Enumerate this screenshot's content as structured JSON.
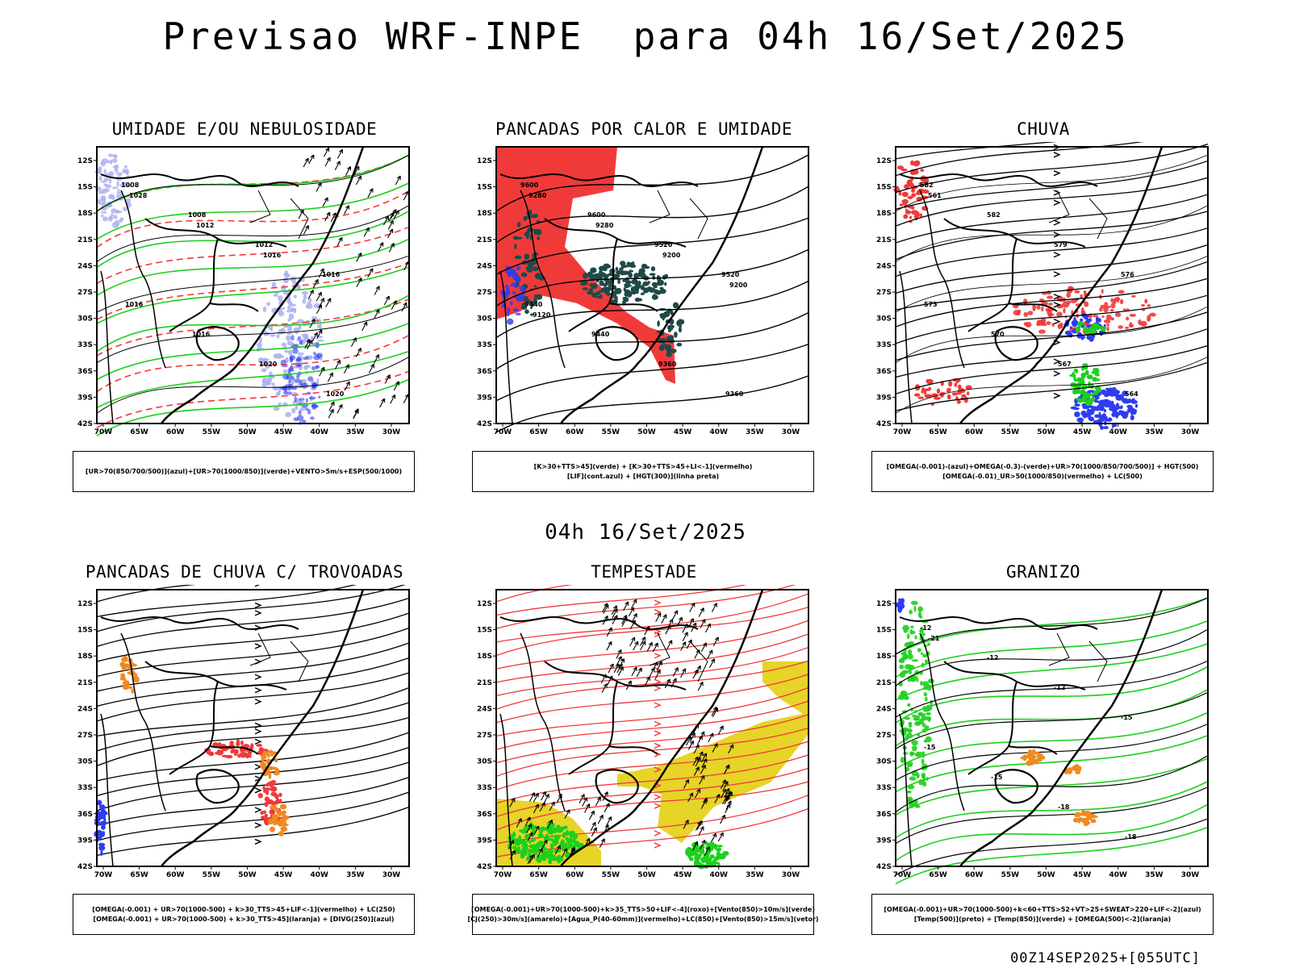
{
  "header": {
    "title": "Previsao WRF-INPE  para 04h 16/Set/2025"
  },
  "middle_label": "04h 16/Set/2025",
  "footer": "00Z14SEP2025+[055UTC]",
  "axes": {
    "lon_labels": [
      "70W",
      "65W",
      "60W",
      "55W",
      "50W",
      "45W",
      "40W",
      "35W",
      "30W"
    ],
    "lat_labels": [
      "12S",
      "15S",
      "18S",
      "21S",
      "24S",
      "27S",
      "30S",
      "33S",
      "36S",
      "39S",
      "42S"
    ]
  },
  "panels": [
    {
      "id": "umidade",
      "title": "UMIDADE E/OU NEBULOSIDADE",
      "legend": [
        "[UR>70(850/700/500)](azul)+[UR>70(1000/850)](verde)+VENTO>5m/s+ESP(500/1000)"
      ],
      "contour_labels": [
        "1008",
        "1008",
        "1012",
        "1016",
        "1016",
        "1016",
        "1020",
        "1020",
        "1028",
        "1012",
        "1016"
      ]
    },
    {
      "id": "pancadas_calor",
      "title": "PANCADAS POR CALOR E UMIDADE",
      "legend": [
        "[K>30+TTS>45](verde) + [K>30+TTS>45+LI<-1](vermelho)",
        "[LIF](cont.azul) + [HGT(300)](linha preta)"
      ],
      "contour_labels": [
        "9600",
        "9600",
        "9520",
        "9520",
        "9440",
        "9440",
        "9360",
        "9360",
        "9280",
        "9280",
        "9200",
        "9200",
        "9120"
      ]
    },
    {
      "id": "chuva",
      "title": "CHUVA",
      "legend": [
        "[OMEGA(-0.001)-(azul)+OMEGA(-0.3)-(verde)+UR>70(1000/850/700/500)] + HGT(500)",
        "[OMEGA(-0.01)_UR>50(1000/850)(vermelho) + LC(500)"
      ],
      "contour_labels": [
        "582",
        "582",
        "579",
        "576",
        "573",
        "570",
        "567",
        "564",
        "561"
      ]
    },
    {
      "id": "trovoadas",
      "title": "PANCADAS DE CHUVA C/ TROVOADAS",
      "legend": [
        "[OMEGA(-0.001) + UR>70(1000-500) + k>30_TTS>45+LIF<-1](vermelho) + LC(250)",
        "[OMEGA(-0.001) + UR>70(1000-500) + k>30_TTS>45](laranja) + [DIVG(250)](azul)"
      ],
      "contour_labels": []
    },
    {
      "id": "tempestade",
      "title": "TEMPESTADE",
      "legend": [
        "[OMEGA(-0.001)+UR>70(1000-500)+k>35_TTS>50+LIF<-4](roxo)+[Vento(850)>10m/s](verde)",
        "[CJ(250)>30m/s](amarelo)+[Agua_P(40-60mm)](vermelho)+LC(850)+[Vento(850)>15m/s](vetor)"
      ],
      "contour_labels": []
    },
    {
      "id": "granizo",
      "title": "GRANIZO",
      "legend": [
        "[OMEGA(-0.001)+UR>70(1000-500)+k<60+TTS>52+VT>25+SWEAT>220+LIF<-2](azul)",
        "[Temp(500)](preto) + [Temp(850)](verde) + [OMEGA(500)<-2](laranja)"
      ],
      "contour_labels": [
        "-12",
        "-12",
        "-12",
        "-15",
        "-15",
        "-15",
        "-18",
        "-18",
        "-21"
      ]
    }
  ],
  "colors": {
    "red": "#f03a3a",
    "green": "#1ecf1e",
    "blue": "#2e3cf0",
    "lavender": "#aab0f0",
    "darkteal": "#1f4a48",
    "yellow": "#e6d428",
    "orange": "#f08a20",
    "purple": "#b020b0"
  }
}
